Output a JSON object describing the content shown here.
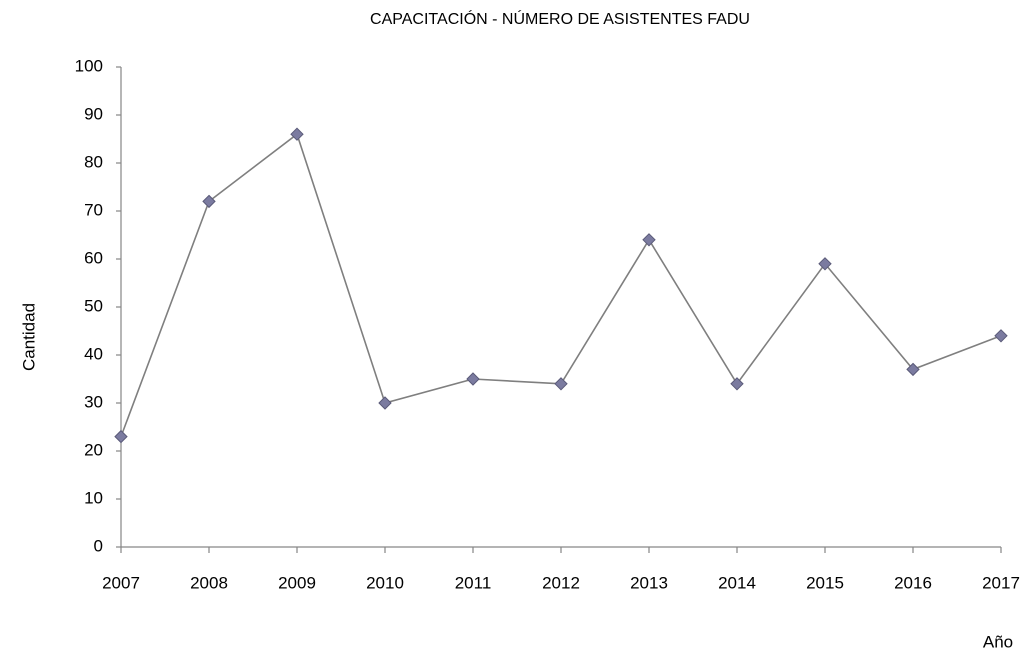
{
  "chart_data": {
    "type": "line",
    "title": "CAPACITACIÓN - NÚMERO DE ASISTENTES  FADU",
    "x_label": "Año",
    "y_label": "Cantidad",
    "x": [
      2007,
      2008,
      2009,
      2010,
      2011,
      2012,
      2013,
      2014,
      2015,
      2016,
      2017
    ],
    "series": [
      {
        "name": "Asistentes",
        "color": "#7f7f7f",
        "marker_color": "#7b7ba0",
        "values": [
          23,
          72,
          86,
          30,
          35,
          34,
          64,
          34,
          59,
          37,
          44
        ]
      }
    ],
    "xlim": [
      2007,
      2017
    ],
    "xticks": [
      2007,
      2008,
      2009,
      2010,
      2011,
      2012,
      2013,
      2014,
      2015,
      2016,
      2017
    ],
    "ylim": [
      0,
      100
    ],
    "yticks": [
      0,
      10,
      20,
      30,
      40,
      50,
      60,
      70,
      80,
      90,
      100
    ],
    "grid": false,
    "legend": false
  }
}
